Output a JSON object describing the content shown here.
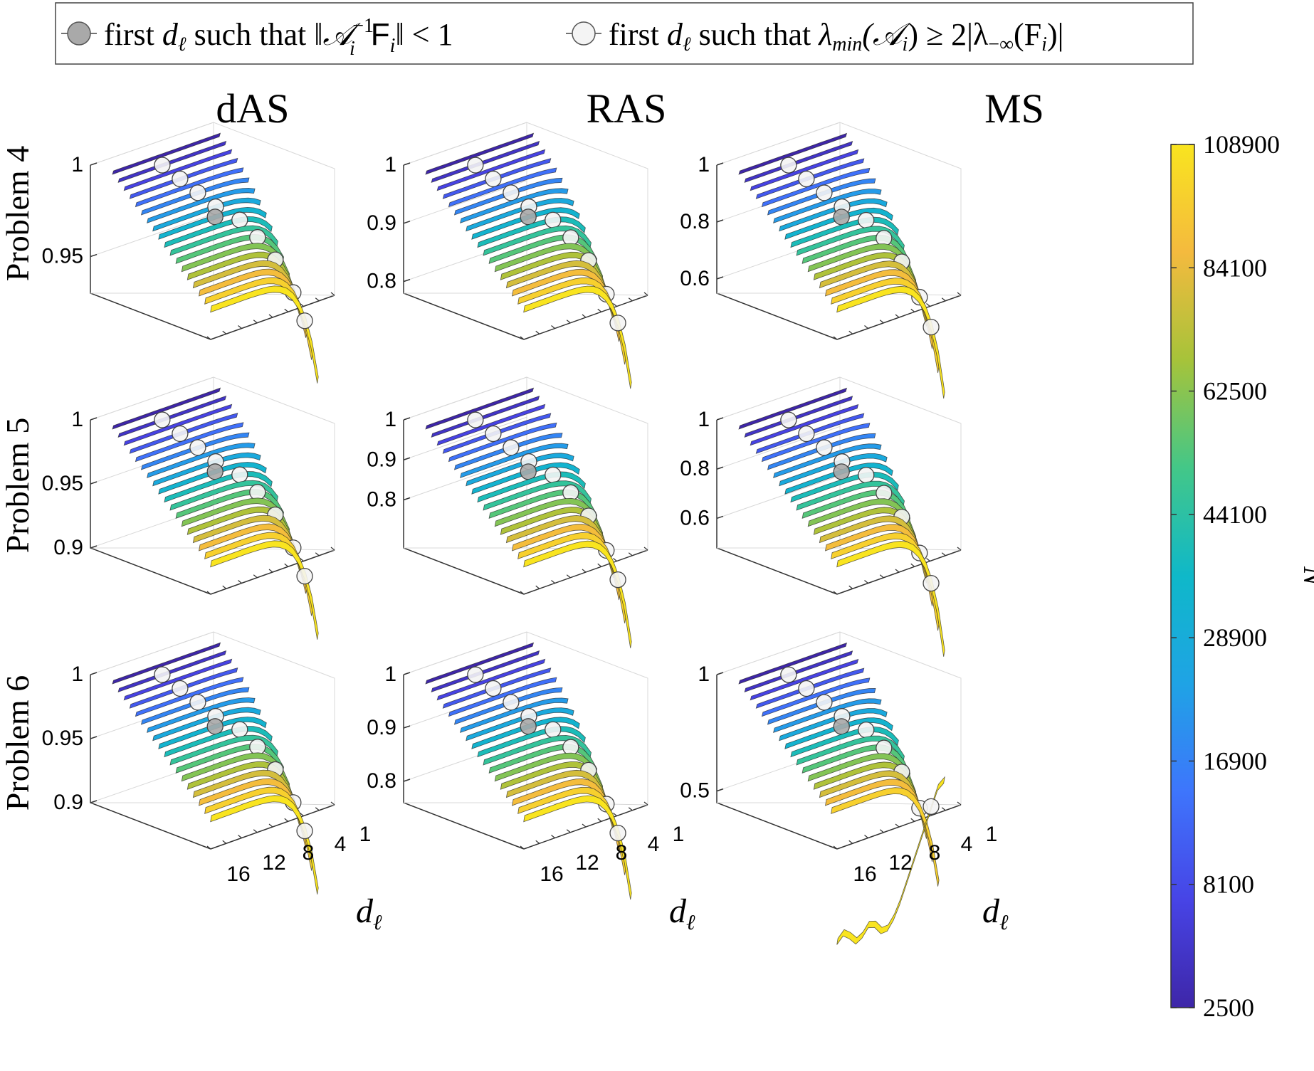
{
  "legend": {
    "entries": [
      {
        "marker": "gray-circle",
        "color": "#a9a9a9",
        "text_prefix": "first",
        "var": "d",
        "var_sub": "ℓ",
        "text_mid": "such that",
        "condition": "‖𝒜",
        "cond_sup": "−1",
        "cond_sub": "i",
        "cond_tail": "F",
        "cond_tail_sub": "i",
        "cond_end": "‖ < 1"
      },
      {
        "marker": "white-circle",
        "color": "#f4f4f4",
        "text_prefix": "first",
        "var": "d",
        "var_sub": "ℓ",
        "text_mid": "such that",
        "condition": "λ",
        "cond_sub": "min",
        "cond_mid": "(𝒜",
        "cond_sub2": "i",
        "cond_end": ") ≥ 2|λ",
        "cond_sub3": "−∞",
        "cond_end2": "(F",
        "cond_sub4": "i",
        "cond_end3": ")|"
      }
    ]
  },
  "columns": [
    "dAS",
    "RAS",
    "MS"
  ],
  "rows": [
    "Problem 4",
    "Problem 5",
    "Problem 6"
  ],
  "x_axis": {
    "label": "d",
    "label_sub": "ℓ",
    "ticks": [
      "16",
      "12",
      "8",
      "4",
      "1"
    ]
  },
  "colorbar": {
    "label": "N",
    "ticks": [
      "108900",
      "84100",
      "62500",
      "44100",
      "28900",
      "16900",
      "8100",
      "2500"
    ],
    "colors": [
      "#3e26a8",
      "#4744e6",
      "#3e75fc",
      "#1fa3e5",
      "#0fb8c9",
      "#43c788",
      "#a6c33a",
      "#f4ba3e",
      "#f9e41f"
    ]
  },
  "chart_data": [
    {
      "type": "3d-ribbon",
      "row": "Problem 4",
      "column": "dAS",
      "z_ticks": [
        "1",
        "0.95"
      ],
      "zlim": [
        0.93,
        1.0
      ],
      "xlabel": "",
      "min_value": 0.935
    },
    {
      "type": "3d-ribbon",
      "row": "Problem 4",
      "column": "RAS",
      "z_ticks": [
        "1",
        "0.9",
        "0.8"
      ],
      "zlim": [
        0.78,
        1.0
      ],
      "xlabel": "",
      "min_value": 0.81
    },
    {
      "type": "3d-ribbon",
      "row": "Problem 4",
      "column": "MS",
      "z_ticks": [
        "1",
        "0.8",
        "0.6"
      ],
      "zlim": [
        0.55,
        1.0
      ],
      "xlabel": "",
      "min_value": 0.58
    },
    {
      "type": "3d-ribbon",
      "row": "Problem 5",
      "column": "dAS",
      "z_ticks": [
        "1",
        "0.95",
        "0.9"
      ],
      "zlim": [
        0.9,
        1.0
      ],
      "xlabel": "",
      "min_value": 0.9
    },
    {
      "type": "3d-ribbon",
      "row": "Problem 5",
      "column": "RAS",
      "z_ticks": [
        "1",
        "0.9",
        "0.8"
      ],
      "zlim": [
        0.68,
        1.0
      ],
      "xlabel": "",
      "min_value": 0.7
    },
    {
      "type": "3d-ribbon",
      "row": "Problem 5",
      "column": "MS",
      "z_ticks": [
        "1",
        "0.8",
        "0.6"
      ],
      "zlim": [
        0.48,
        1.0
      ],
      "xlabel": "",
      "min_value": 0.5
    },
    {
      "type": "3d-ribbon",
      "row": "Problem 6",
      "column": "dAS",
      "z_ticks": [
        "1",
        "0.95",
        "0.9"
      ],
      "zlim": [
        0.9,
        1.0
      ],
      "xlabel": "d_ℓ",
      "min_value": 0.9
    },
    {
      "type": "3d-ribbon",
      "row": "Problem 6",
      "column": "RAS",
      "z_ticks": [
        "1",
        "0.9",
        "0.8"
      ],
      "zlim": [
        0.76,
        1.0
      ],
      "xlabel": "d_ℓ",
      "min_value": 0.78
    },
    {
      "type": "3d-ribbon",
      "row": "Problem 6",
      "column": "MS",
      "z_ticks": [
        "1",
        "0.5"
      ],
      "zlim": [
        0.45,
        1.0
      ],
      "xlabel": "d_ℓ",
      "min_value": 0.47
    }
  ]
}
